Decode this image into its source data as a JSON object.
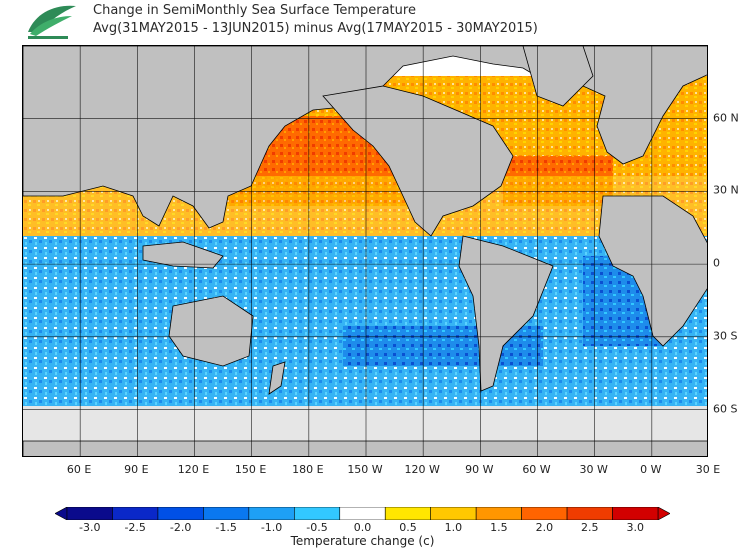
{
  "title": {
    "line1": "Change in SemiMonthly Sea Surface Temperature",
    "line2": "Avg(31MAY2015 - 13JUN2015) minus Avg(17MAY2015 - 30MAY2015)"
  },
  "logo_icon": "leaf-emblem-icon",
  "map": {
    "projection": "equirectangular",
    "lon_range": [
      30,
      390
    ],
    "lat_range": [
      -80,
      90
    ],
    "grid": true,
    "lat_labels": [
      {
        "lat": 60,
        "text": "60 N"
      },
      {
        "lat": 30,
        "text": "30 N"
      },
      {
        "lat": 0,
        "text": "0"
      },
      {
        "lat": -30,
        "text": "30 S"
      },
      {
        "lat": -60,
        "text": "60 S"
      }
    ],
    "lon_labels": [
      {
        "lon": 60,
        "text": "60 E"
      },
      {
        "lon": 90,
        "text": "90 E"
      },
      {
        "lon": 120,
        "text": "120 E"
      },
      {
        "lon": 150,
        "text": "150 E"
      },
      {
        "lon": 180,
        "text": "180 E"
      },
      {
        "lon": 210,
        "text": "150 W"
      },
      {
        "lon": 240,
        "text": "120 W"
      },
      {
        "lon": 270,
        "text": "90 W"
      },
      {
        "lon": 300,
        "text": "60 W"
      },
      {
        "lon": 330,
        "text": "30 W"
      },
      {
        "lon": 360,
        "text": "0 W"
      },
      {
        "lon": 390,
        "text": "30 E"
      }
    ],
    "land_color": "#c0c0c0",
    "sea_ice_color": "#e6e6e6"
  },
  "colorbar": {
    "title": "Temperature change  (c)",
    "ticks": [
      "-3.0",
      "-2.5",
      "-2.0",
      "-1.5",
      "-1.0",
      "-0.5",
      "0.0",
      "0.5",
      "1.0",
      "1.5",
      "2.0",
      "2.5",
      "3.0"
    ],
    "colors": [
      "#0a0a8c",
      "#0a28c8",
      "#0050e6",
      "#0a78f0",
      "#1ea0f5",
      "#32c8ff",
      "#ffffff",
      "#ffe600",
      "#ffc800",
      "#ff9600",
      "#ff6400",
      "#f03c00",
      "#d20000"
    ]
  }
}
